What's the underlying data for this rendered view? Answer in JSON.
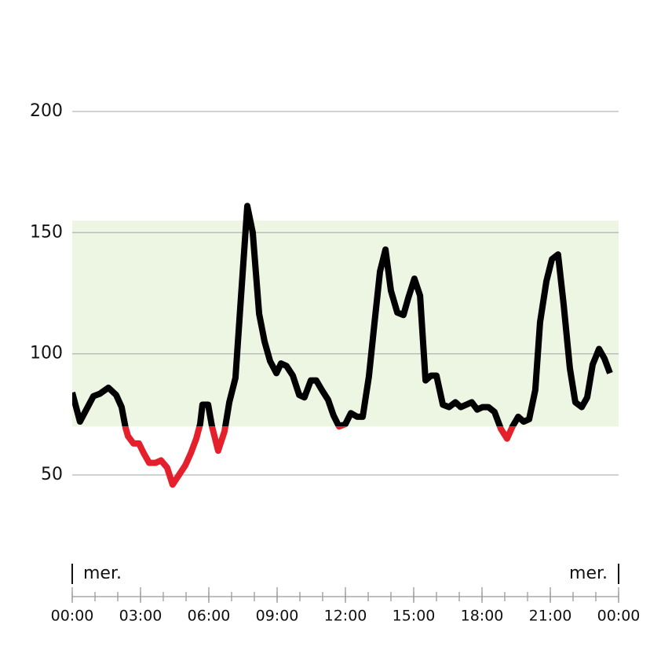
{
  "chart_data": {
    "type": "line",
    "x": [
      0,
      0.34,
      0.79,
      0.93,
      1.21,
      1.59,
      1.93,
      2.17,
      2.34,
      2.45,
      2.69,
      2.93,
      3.14,
      3.38,
      3.66,
      3.9,
      4.17,
      4.41,
      4.69,
      4.97,
      5.21,
      5.45,
      5.62,
      5.72,
      5.97,
      6.14,
      6.41,
      6.69,
      6.9,
      7.17,
      7.41,
      7.69,
      7.93,
      8.21,
      8.45,
      8.69,
      8.97,
      9.17,
      9.41,
      9.69,
      9.97,
      10.2,
      10.48,
      10.72,
      10.97,
      11.24,
      11.48,
      11.72,
      12.0,
      12.24,
      12.52,
      12.76,
      13.03,
      13.28,
      13.52,
      13.76,
      14.0,
      14.28,
      14.55,
      14.76,
      15.03,
      15.28,
      15.52,
      15.76,
      16.0,
      16.28,
      16.55,
      16.83,
      17.07,
      17.31,
      17.55,
      17.79,
      18.03,
      18.28,
      18.55,
      18.83,
      19.1,
      19.34,
      19.59,
      19.83,
      20.07,
      20.34,
      20.55,
      20.83,
      21.07,
      21.34,
      21.59,
      21.86,
      22.1,
      22.38,
      22.62,
      22.86,
      23.14,
      23.38,
      23.62
    ],
    "series": [
      {
        "color": "#000000",
        "low_color": "#e3202b",
        "values": [
          84,
          72,
          80,
          82.5,
          83.5,
          86,
          83,
          78,
          69.6,
          66,
          63,
          63,
          59,
          55,
          55,
          56,
          53,
          46,
          50,
          54,
          59,
          65,
          71,
          79,
          79,
          70,
          60,
          68,
          80,
          90,
          123,
          161,
          150,
          116.5,
          105,
          97,
          92,
          96,
          95,
          91,
          83,
          82,
          89,
          89,
          85,
          81,
          74.5,
          70,
          71,
          75.5,
          74,
          74,
          90.5,
          113,
          134,
          143,
          126,
          117,
          116,
          123,
          131,
          124,
          89,
          91,
          91,
          79,
          78,
          80,
          78,
          79,
          80,
          77,
          78,
          78,
          76,
          69,
          65,
          70,
          74,
          72,
          73,
          85,
          113,
          130,
          139,
          141,
          120,
          94,
          80,
          78,
          82,
          95.5,
          102,
          98,
          92
        ]
      }
    ],
    "target_range": [
      70,
      155
    ],
    "target_color": "#edf5e3",
    "xlim": [
      0,
      24
    ],
    "xticks": [
      {
        "value": 0,
        "label": "00:00"
      },
      {
        "value": 3,
        "label": "03:00"
      },
      {
        "value": 6,
        "label": "06:00"
      },
      {
        "value": 9,
        "label": "09:00"
      },
      {
        "value": 12,
        "label": "12:00"
      },
      {
        "value": 15,
        "label": "15:00"
      },
      {
        "value": 18,
        "label": "18:00"
      },
      {
        "value": 21,
        "label": "21:00"
      },
      {
        "value": 24,
        "label": "00:00"
      }
    ],
    "xminorticks": [
      0,
      1,
      2,
      3,
      4,
      5,
      6,
      7,
      8,
      9,
      10,
      11,
      12,
      13,
      14,
      15,
      16,
      17,
      18,
      19,
      20,
      21,
      22,
      23,
      24
    ],
    "day_labels": [
      {
        "value": 0,
        "label": "mer."
      },
      {
        "value": 24,
        "label": "mer."
      }
    ],
    "ylim": [
      30,
      220
    ],
    "yticks": [
      50,
      100,
      150,
      200
    ],
    "grid": true
  }
}
